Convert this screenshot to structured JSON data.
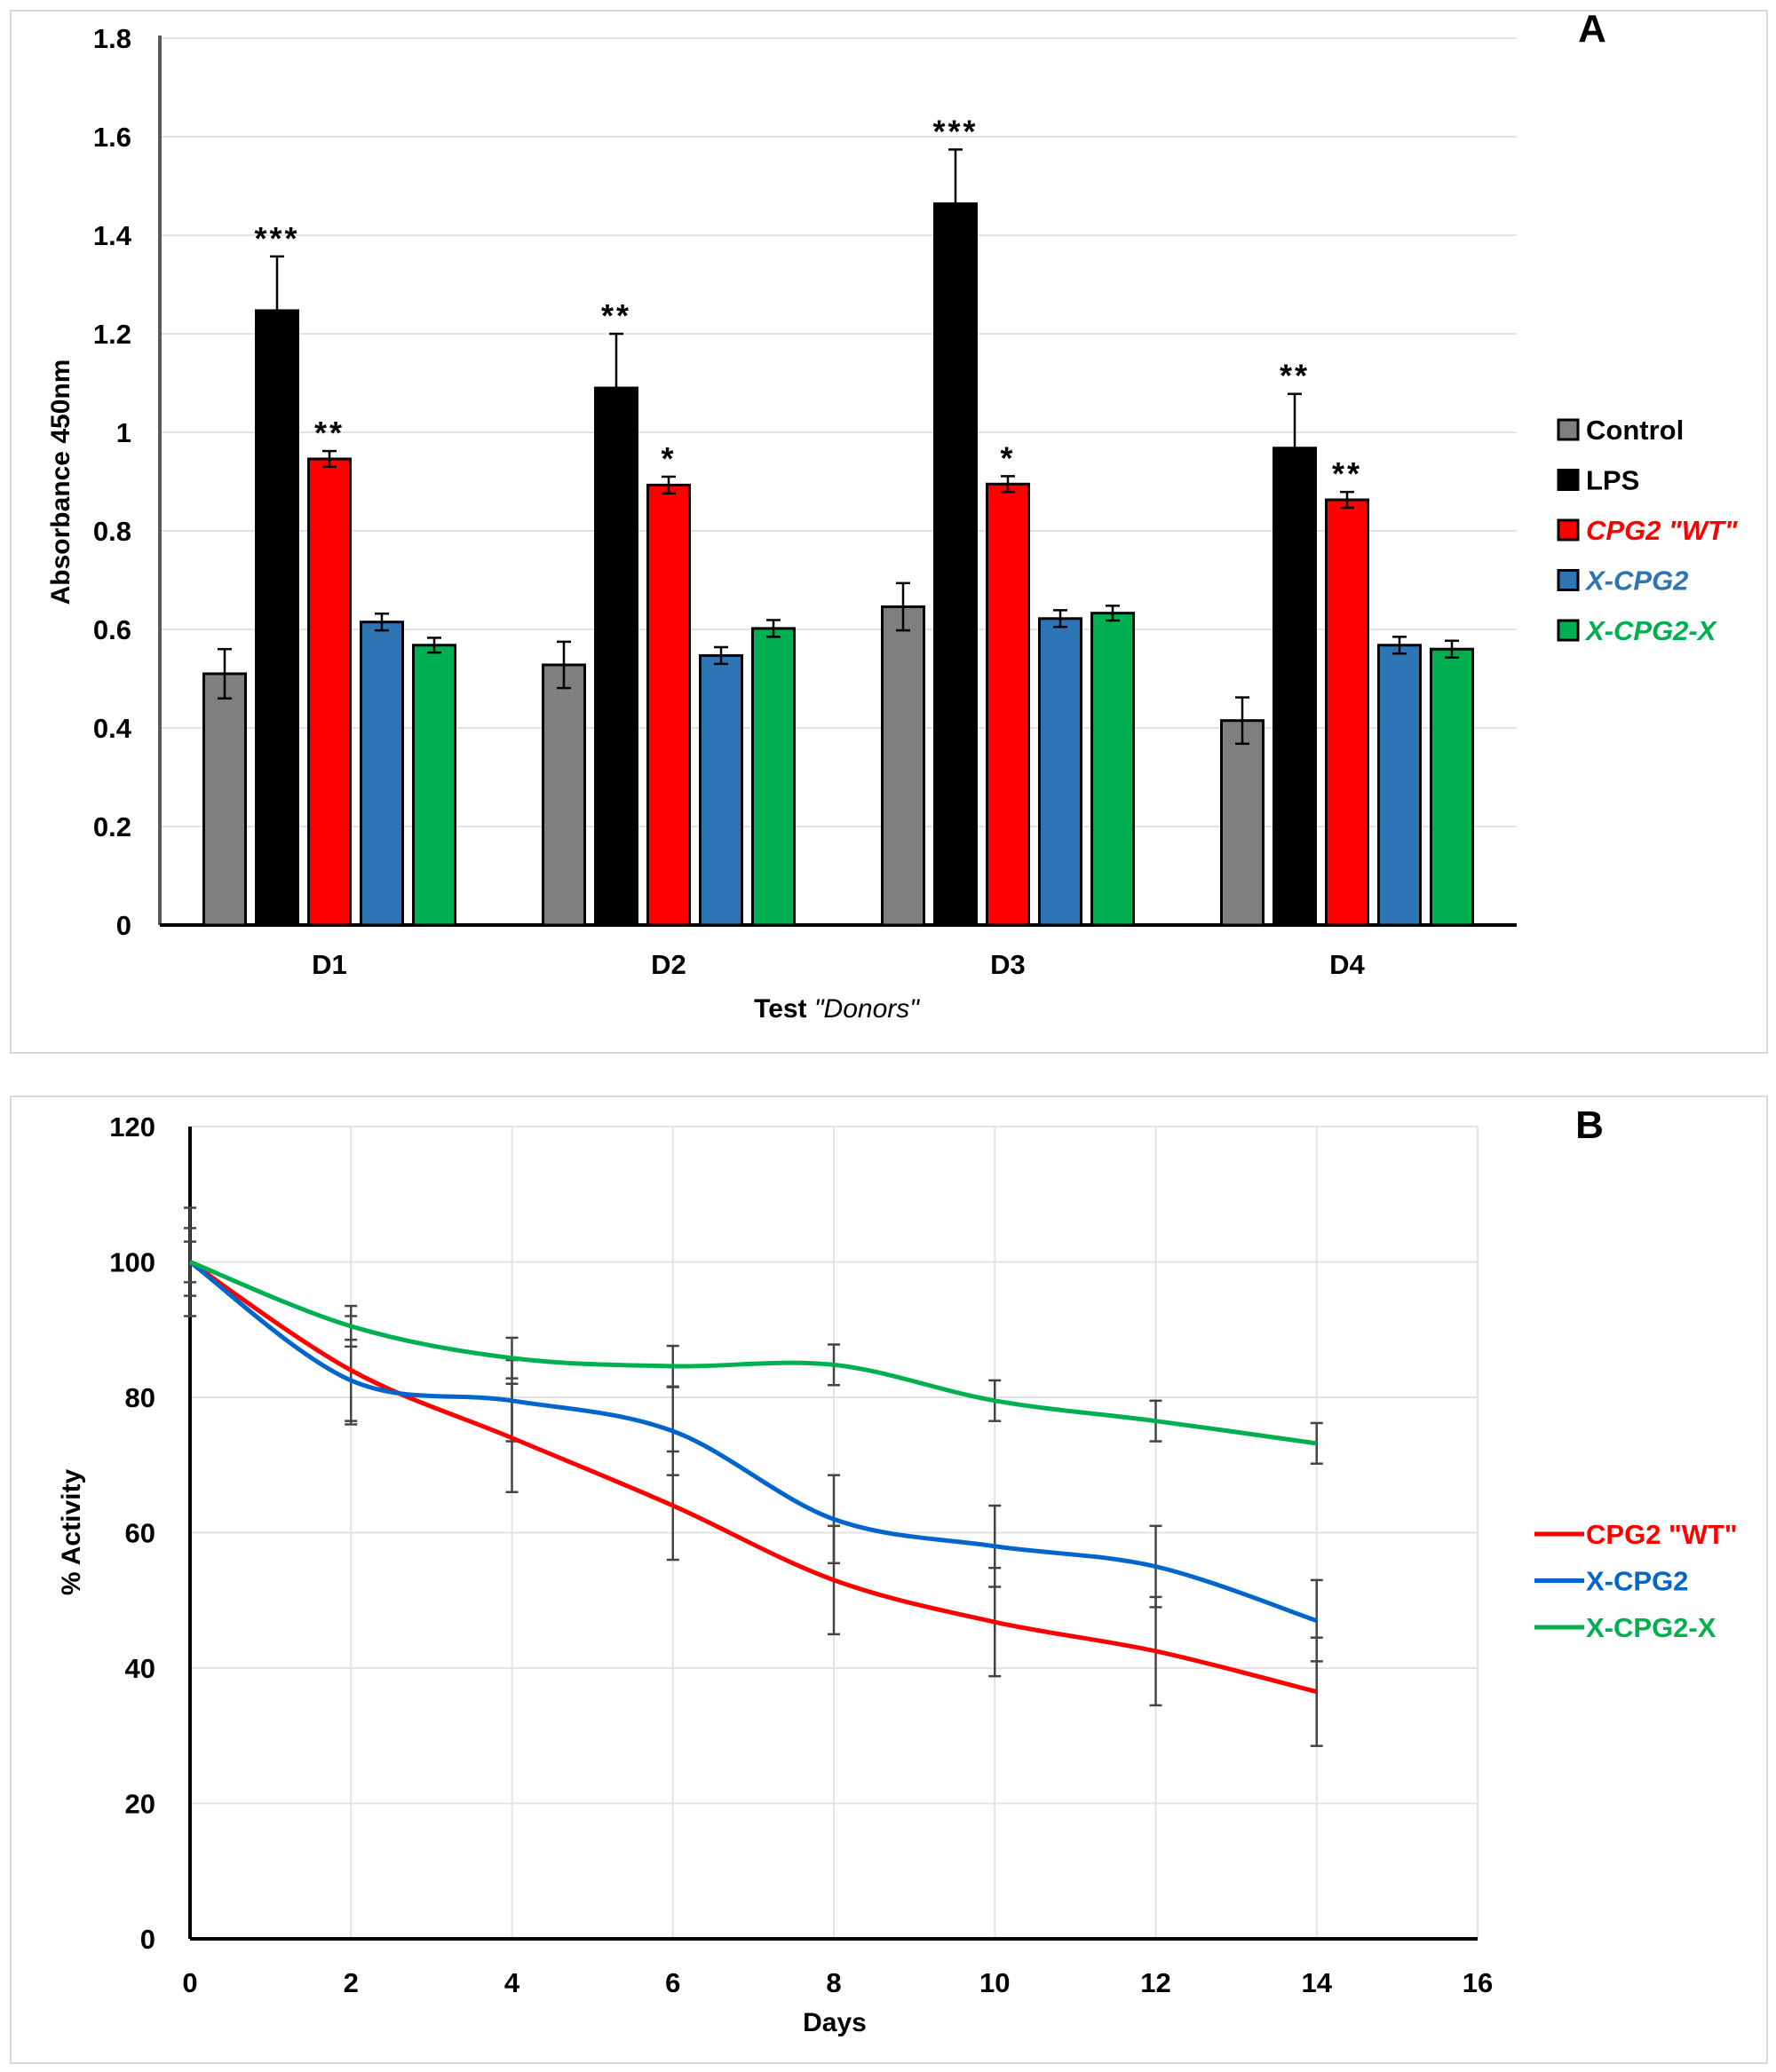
{
  "chart_data": [
    {
      "panel": "A",
      "type": "bar",
      "xlabel": "Test",
      "xlabel_italic": "\"Donors\"",
      "ylabel": "Absorbance 450nm",
      "ylim": [
        0,
        1.8
      ],
      "yticks": [
        "0",
        "0.2",
        "0.4",
        "0.6",
        "0.8",
        "1",
        "1.2",
        "1.4",
        "1.6",
        "1.8"
      ],
      "grid": "horizontal",
      "legend_placement": "right",
      "categories": [
        "D1",
        "D2",
        "D3",
        "D4"
      ],
      "series": [
        {
          "name": "Control",
          "color": "#7f7f7f",
          "legend_italic": false,
          "values": [
            0.51,
            0.528,
            0.646,
            0.415
          ],
          "errors": [
            0.05,
            0.047,
            0.048,
            0.047
          ],
          "stars": [
            "",
            "",
            "",
            ""
          ]
        },
        {
          "name": "LPS",
          "color": "#000000",
          "legend_italic": false,
          "values": [
            1.247,
            1.09,
            1.464,
            0.968
          ],
          "errors": [
            0.11,
            0.11,
            0.11,
            0.11
          ],
          "stars": [
            "***",
            "**",
            "***",
            "**"
          ]
        },
        {
          "name": "CPG2 \"WT\"",
          "color": "#ff0000",
          "legend_italic": true,
          "values": [
            0.946,
            0.893,
            0.895,
            0.863
          ],
          "errors": [
            0.016,
            0.017,
            0.016,
            0.016
          ],
          "stars": [
            "**",
            "*",
            "*",
            "**"
          ]
        },
        {
          "name": "X-CPG2",
          "color": "#2e75b6",
          "legend_italic": true,
          "values": [
            0.615,
            0.547,
            0.622,
            0.568
          ],
          "errors": [
            0.017,
            0.017,
            0.017,
            0.017
          ],
          "stars": [
            "",
            "",
            "",
            ""
          ]
        },
        {
          "name": "X-CPG2-X",
          "color": "#00b050",
          "legend_italic": true,
          "values": [
            0.568,
            0.602,
            0.633,
            0.56
          ],
          "errors": [
            0.015,
            0.017,
            0.015,
            0.017
          ],
          "stars": [
            "",
            "",
            "",
            ""
          ]
        }
      ]
    },
    {
      "panel": "B",
      "type": "line",
      "xlabel": "Days",
      "ylabel": "% Activity",
      "xlim": [
        0,
        16
      ],
      "ylim": [
        0,
        120
      ],
      "xticks": [
        "0",
        "2",
        "4",
        "6",
        "8",
        "10",
        "12",
        "14",
        "16"
      ],
      "yticks": [
        "0",
        "20",
        "40",
        "60",
        "80",
        "100",
        "120"
      ],
      "grid": "both",
      "smooth": true,
      "legend_placement": "right",
      "x": [
        0,
        2,
        4,
        6,
        8,
        10,
        12,
        14
      ],
      "series": [
        {
          "name": "CPG2 \"WT\"",
          "color": "#ff0000",
          "values": [
            100,
            84,
            74,
            64,
            53,
            46.8,
            42.5,
            36.5
          ],
          "errors": [
            8,
            8,
            8,
            8,
            8,
            8,
            8,
            8
          ]
        },
        {
          "name": "X-CPG2",
          "color": "#0066cc",
          "values": [
            100,
            82.5,
            79.5,
            75,
            62,
            58,
            55,
            47
          ],
          "errors": [
            5,
            6,
            6,
            6.5,
            6.5,
            6,
            6,
            6
          ]
        },
        {
          "name": "X-CPG2-X",
          "color": "#00b050",
          "values": [
            100,
            90.5,
            85.8,
            84.6,
            84.8,
            79.5,
            76.5,
            73.2
          ],
          "errors": [
            3,
            3,
            3,
            3,
            3,
            3,
            3,
            3
          ]
        }
      ]
    }
  ]
}
